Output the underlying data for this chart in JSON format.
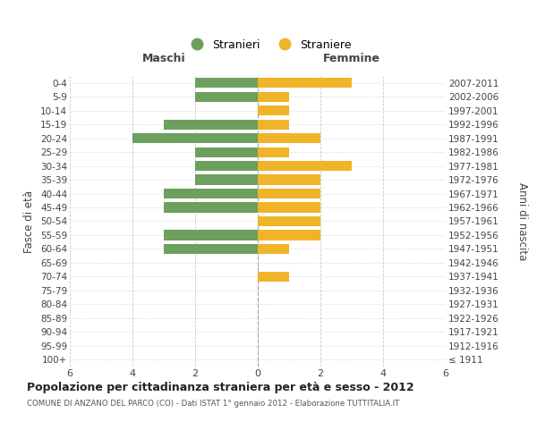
{
  "age_groups": [
    "100+",
    "95-99",
    "90-94",
    "85-89",
    "80-84",
    "75-79",
    "70-74",
    "65-69",
    "60-64",
    "55-59",
    "50-54",
    "45-49",
    "40-44",
    "35-39",
    "30-34",
    "25-29",
    "20-24",
    "15-19",
    "10-14",
    "5-9",
    "0-4"
  ],
  "birth_years": [
    "≤ 1911",
    "1912-1916",
    "1917-1921",
    "1922-1926",
    "1927-1931",
    "1932-1936",
    "1937-1941",
    "1942-1946",
    "1947-1951",
    "1952-1956",
    "1957-1961",
    "1962-1966",
    "1967-1971",
    "1972-1976",
    "1977-1981",
    "1982-1986",
    "1987-1991",
    "1992-1996",
    "1997-2001",
    "2002-2006",
    "2007-2011"
  ],
  "males": [
    0,
    0,
    0,
    0,
    0,
    0,
    0,
    0,
    3,
    3,
    0,
    3,
    3,
    2,
    2,
    2,
    4,
    3,
    0,
    2,
    2
  ],
  "females": [
    0,
    0,
    0,
    0,
    0,
    0,
    1,
    0,
    1,
    2,
    2,
    2,
    2,
    2,
    3,
    1,
    2,
    1,
    1,
    1,
    3
  ],
  "male_color": "#6d9f5e",
  "female_color": "#f0b429",
  "male_label": "Stranieri",
  "female_label": "Straniere",
  "title": "Popolazione per cittadinanza straniera per età e sesso - 2012",
  "subtitle": "COMUNE DI ANZANO DEL PARCO (CO) - Dati ISTAT 1° gennaio 2012 - Elaborazione TUTTITALIA.IT",
  "ylabel_left": "Fasce di età",
  "ylabel_right": "Anni di nascita",
  "xlabel_left": "Maschi",
  "xlabel_right": "Femmine",
  "xlim": 6,
  "grid_color": "#cccccc",
  "bg_color": "#ffffff",
  "bar_height": 0.72
}
